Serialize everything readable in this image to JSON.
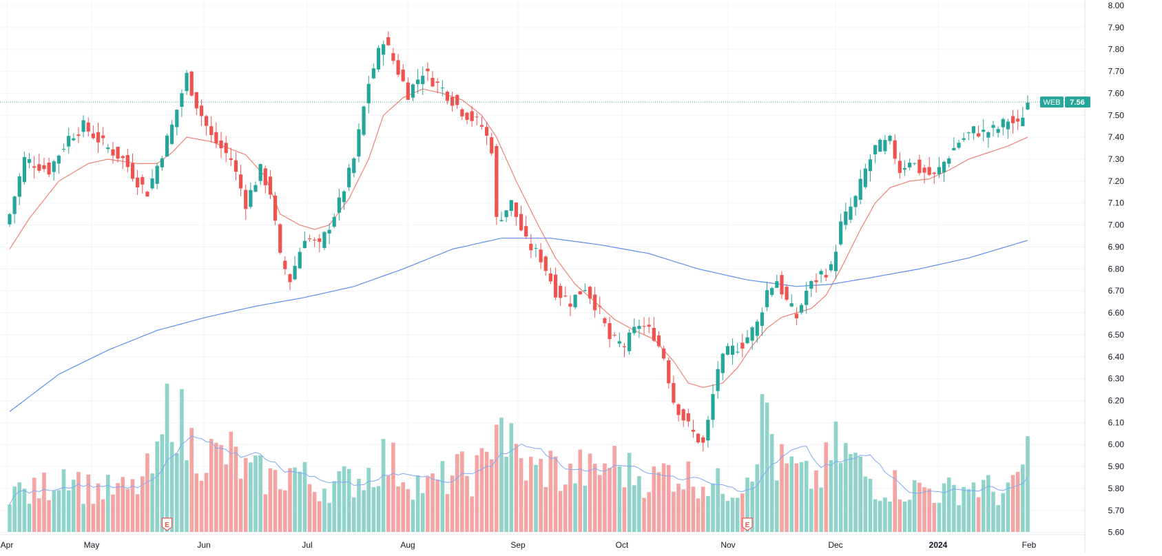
{
  "chart_data": {
    "type": "candlestick",
    "symbol": "WEB",
    "last_price": "7.56",
    "x_tick_labels": [
      "Apr",
      "May",
      "Jun",
      "Jul",
      "Aug",
      "Sep",
      "Oct",
      "Nov",
      "Dec",
      "2024",
      "Feb"
    ],
    "y_tick_labels": [
      "8.00",
      "7.90",
      "7.80",
      "7.70",
      "7.60",
      "7.50",
      "7.40",
      "7.30",
      "7.20",
      "7.10",
      "7.00",
      "6.90",
      "6.80",
      "6.70",
      "6.60",
      "6.50",
      "6.40",
      "6.30",
      "6.20",
      "6.10",
      "6.00",
      "5.90",
      "5.80",
      "5.70",
      "5.60"
    ],
    "ylim": [
      5.58,
      8.0
    ],
    "earnings_marker_label": "E",
    "colors": {
      "up": "#26a69a",
      "down": "#ef5350",
      "up_volume": "#8fd3cb",
      "down_volume": "#f4a5a3",
      "short_ma": "#f08074",
      "long_ma": "#5b8ef0",
      "volume_ma": "#7fa7f5",
      "price_line": "#26a69a",
      "grid": "#f0f3fa",
      "axis_text": "#131722"
    },
    "series": [
      {
        "name": "price",
        "close_anchors": [
          [
            0,
            7.05
          ],
          [
            3,
            7.3
          ],
          [
            8,
            7.25
          ],
          [
            12,
            7.4
          ],
          [
            15,
            7.45
          ],
          [
            20,
            7.35
          ],
          [
            23,
            7.3
          ],
          [
            26,
            7.2
          ],
          [
            28,
            7.15
          ],
          [
            33,
            7.45
          ],
          [
            36,
            7.68
          ],
          [
            38,
            7.55
          ],
          [
            41,
            7.4
          ],
          [
            45,
            7.3
          ],
          [
            48,
            7.1
          ],
          [
            51,
            7.25
          ],
          [
            53,
            7.15
          ],
          [
            55,
            6.85
          ],
          [
            57,
            6.75
          ],
          [
            60,
            6.95
          ],
          [
            63,
            6.9
          ],
          [
            65,
            7.0
          ],
          [
            67,
            7.1
          ],
          [
            70,
            7.3
          ],
          [
            73,
            7.65
          ],
          [
            76,
            7.85
          ],
          [
            79,
            7.7
          ],
          [
            81,
            7.6
          ],
          [
            84,
            7.7
          ],
          [
            88,
            7.62
          ],
          [
            92,
            7.52
          ],
          [
            96,
            7.45
          ],
          [
            98,
            7.35
          ],
          [
            99,
            7.02
          ],
          [
            102,
            7.1
          ],
          [
            105,
            6.92
          ],
          [
            108,
            6.85
          ],
          [
            111,
            6.7
          ],
          [
            114,
            6.65
          ],
          [
            117,
            6.72
          ],
          [
            120,
            6.6
          ],
          [
            122,
            6.48
          ],
          [
            125,
            6.45
          ],
          [
            128,
            6.55
          ],
          [
            131,
            6.5
          ],
          [
            133,
            6.4
          ],
          [
            135,
            6.2
          ],
          [
            137,
            6.12
          ],
          [
            139,
            6.05
          ],
          [
            141,
            6.0
          ],
          [
            142,
            6.1
          ],
          [
            144,
            6.35
          ],
          [
            146,
            6.42
          ],
          [
            149,
            6.46
          ],
          [
            152,
            6.55
          ],
          [
            154,
            6.7
          ],
          [
            156,
            6.75
          ],
          [
            158,
            6.65
          ],
          [
            160,
            6.58
          ],
          [
            162,
            6.7
          ],
          [
            165,
            6.78
          ],
          [
            167,
            6.8
          ],
          [
            169,
            7.0
          ],
          [
            172,
            7.12
          ],
          [
            174,
            7.25
          ],
          [
            176,
            7.35
          ],
          [
            179,
            7.38
          ],
          [
            181,
            7.25
          ],
          [
            183,
            7.3
          ],
          [
            185,
            7.25
          ],
          [
            188,
            7.22
          ],
          [
            191,
            7.32
          ],
          [
            193,
            7.38
          ],
          [
            196,
            7.43
          ],
          [
            198,
            7.42
          ],
          [
            201,
            7.44
          ],
          [
            203,
            7.48
          ],
          [
            205,
            7.45
          ],
          [
            207,
            7.56
          ]
        ]
      },
      {
        "name": "short_ma_anchors",
        "values": [
          [
            0,
            6.89
          ],
          [
            4,
            7.03
          ],
          [
            10,
            7.2
          ],
          [
            16,
            7.28
          ],
          [
            20,
            7.3
          ],
          [
            26,
            7.28
          ],
          [
            30,
            7.28
          ],
          [
            33,
            7.33
          ],
          [
            36,
            7.4
          ],
          [
            41,
            7.38
          ],
          [
            48,
            7.32
          ],
          [
            52,
            7.22
          ],
          [
            55,
            7.05
          ],
          [
            59,
            7.0
          ],
          [
            62,
            6.98
          ],
          [
            65,
            7.0
          ],
          [
            69,
            7.12
          ],
          [
            73,
            7.3
          ],
          [
            76,
            7.5
          ],
          [
            80,
            7.58
          ],
          [
            84,
            7.62
          ],
          [
            88,
            7.6
          ],
          [
            92,
            7.57
          ],
          [
            96,
            7.5
          ],
          [
            99,
            7.4
          ],
          [
            103,
            7.2
          ],
          [
            107,
            7.02
          ],
          [
            111,
            6.85
          ],
          [
            115,
            6.73
          ],
          [
            119,
            6.65
          ],
          [
            123,
            6.57
          ],
          [
            127,
            6.52
          ],
          [
            131,
            6.48
          ],
          [
            135,
            6.38
          ],
          [
            138,
            6.28
          ],
          [
            141,
            6.26
          ],
          [
            145,
            6.28
          ],
          [
            148,
            6.35
          ],
          [
            151,
            6.45
          ],
          [
            154,
            6.53
          ],
          [
            157,
            6.58
          ],
          [
            160,
            6.6
          ],
          [
            163,
            6.62
          ],
          [
            166,
            6.68
          ],
          [
            169,
            6.8
          ],
          [
            173,
            6.98
          ],
          [
            176,
            7.1
          ],
          [
            179,
            7.17
          ],
          [
            183,
            7.2
          ],
          [
            187,
            7.21
          ],
          [
            191,
            7.25
          ],
          [
            195,
            7.3
          ],
          [
            199,
            7.33
          ],
          [
            203,
            7.36
          ],
          [
            207,
            7.4
          ]
        ]
      },
      {
        "name": "long_ma_anchors",
        "values": [
          [
            0,
            6.15
          ],
          [
            10,
            6.32
          ],
          [
            20,
            6.43
          ],
          [
            30,
            6.52
          ],
          [
            40,
            6.58
          ],
          [
            50,
            6.63
          ],
          [
            60,
            6.67
          ],
          [
            70,
            6.72
          ],
          [
            80,
            6.8
          ],
          [
            90,
            6.89
          ],
          [
            100,
            6.94
          ],
          [
            110,
            6.94
          ],
          [
            120,
            6.91
          ],
          [
            130,
            6.87
          ],
          [
            140,
            6.8
          ],
          [
            150,
            6.75
          ],
          [
            160,
            6.72
          ],
          [
            167,
            6.73
          ],
          [
            175,
            6.76
          ],
          [
            185,
            6.8
          ],
          [
            195,
            6.85
          ],
          [
            207,
            6.93
          ]
        ]
      },
      {
        "name": "volume_anchors",
        "values": [
          [
            0,
            0.3
          ],
          [
            4,
            0.25
          ],
          [
            8,
            0.32
          ],
          [
            12,
            0.45
          ],
          [
            15,
            0.3
          ],
          [
            20,
            0.28
          ],
          [
            25,
            0.28
          ],
          [
            30,
            0.45
          ],
          [
            33,
            0.95
          ],
          [
            36,
            0.6
          ],
          [
            39,
            0.55
          ],
          [
            42,
            0.5
          ],
          [
            45,
            0.52
          ],
          [
            48,
            0.4
          ],
          [
            51,
            0.38
          ],
          [
            54,
            0.35
          ],
          [
            58,
            0.42
          ],
          [
            62,
            0.3
          ],
          [
            66,
            0.32
          ],
          [
            70,
            0.35
          ],
          [
            73,
            0.4
          ],
          [
            76,
            0.5
          ],
          [
            79,
            0.42
          ],
          [
            82,
            0.35
          ],
          [
            85,
            0.3
          ],
          [
            88,
            0.35
          ],
          [
            91,
            0.4
          ],
          [
            94,
            0.38
          ],
          [
            97,
            0.45
          ],
          [
            99,
            0.9
          ],
          [
            101,
            0.62
          ],
          [
            104,
            0.45
          ],
          [
            107,
            0.4
          ],
          [
            110,
            0.45
          ],
          [
            113,
            0.35
          ],
          [
            116,
            0.42
          ],
          [
            119,
            0.38
          ],
          [
            122,
            0.48
          ],
          [
            125,
            0.42
          ],
          [
            128,
            0.38
          ],
          [
            131,
            0.35
          ],
          [
            134,
            0.42
          ],
          [
            137,
            0.38
          ],
          [
            140,
            0.36
          ],
          [
            143,
            0.32
          ],
          [
            146,
            0.3
          ],
          [
            149,
            0.34
          ],
          [
            152,
            0.6
          ],
          [
            154,
            0.85
          ],
          [
            156,
            0.45
          ],
          [
            159,
            0.42
          ],
          [
            162,
            0.35
          ],
          [
            165,
            0.38
          ],
          [
            168,
            0.55
          ],
          [
            171,
            0.5
          ],
          [
            174,
            0.38
          ],
          [
            177,
            0.3
          ],
          [
            180,
            0.32
          ],
          [
            183,
            0.28
          ],
          [
            186,
            0.3
          ],
          [
            189,
            0.26
          ],
          [
            192,
            0.28
          ],
          [
            195,
            0.32
          ],
          [
            198,
            0.3
          ],
          [
            201,
            0.26
          ],
          [
            204,
            0.28
          ],
          [
            207,
            0.55
          ]
        ]
      }
    ]
  }
}
